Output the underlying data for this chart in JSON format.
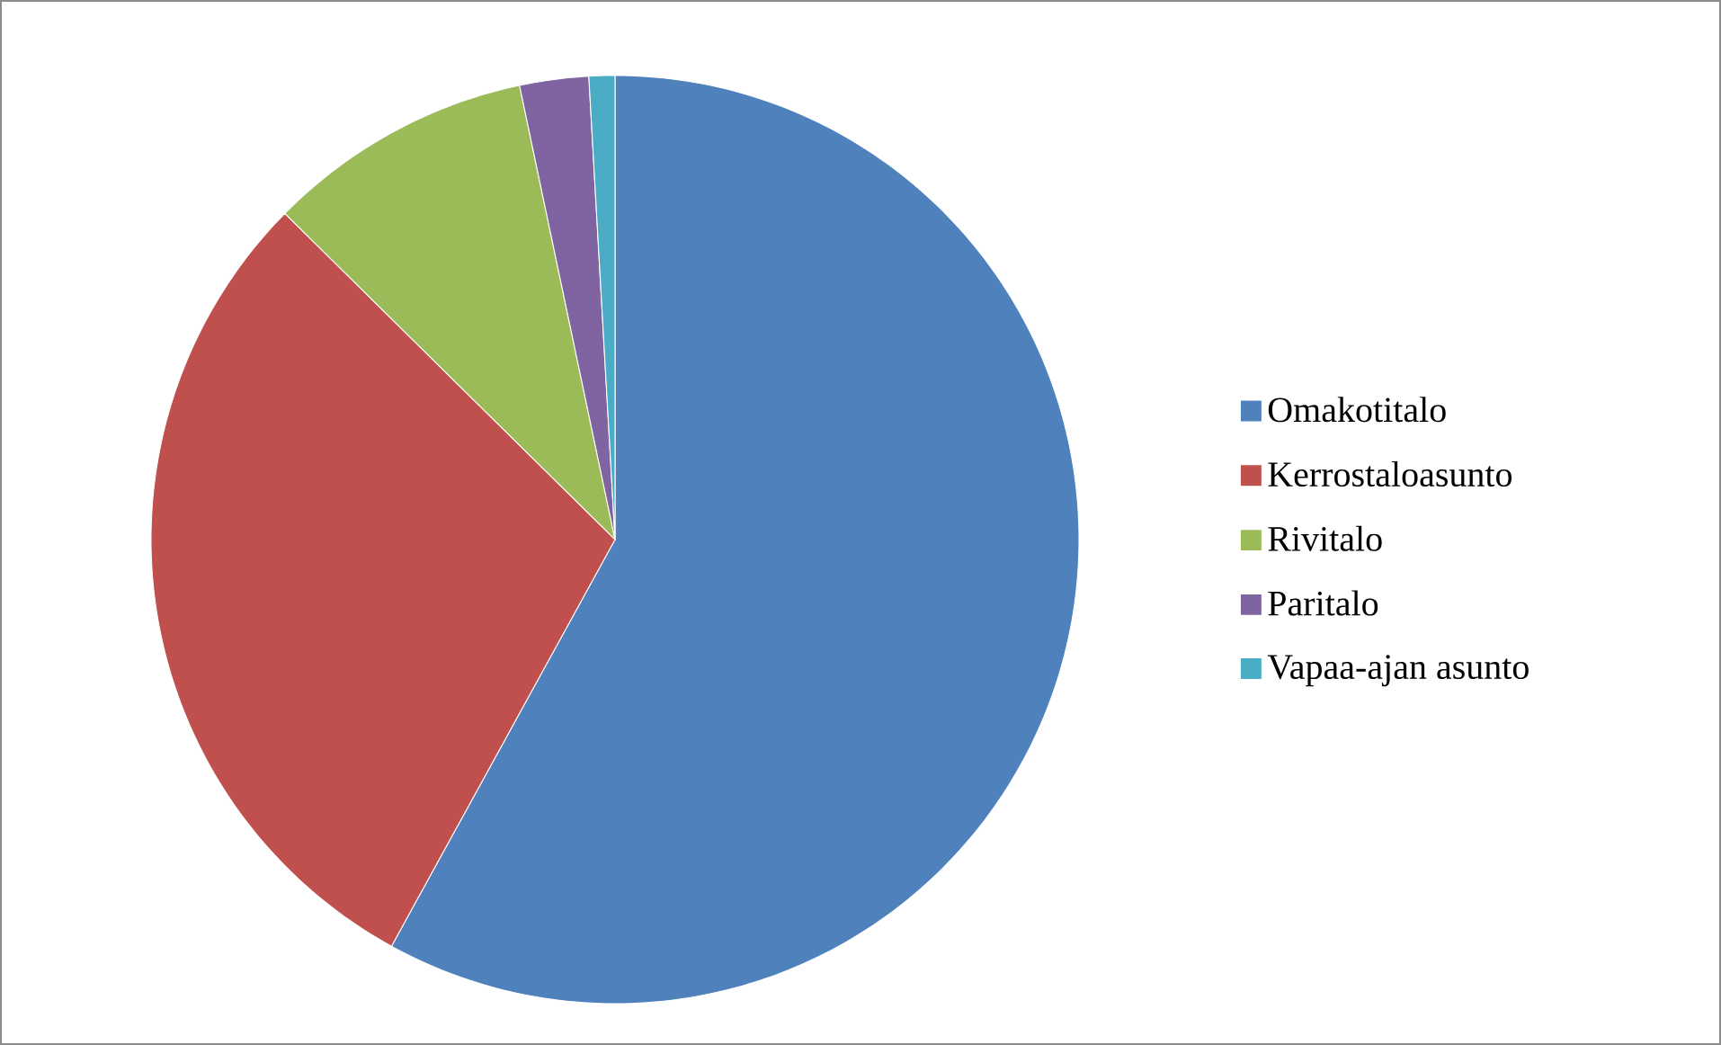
{
  "chart_data": {
    "type": "pie",
    "categories": [
      "Omakotitalo",
      "Kerrostaloasunto",
      "Rivitalo",
      "Paritalo",
      "Vapaa-ajan asunto"
    ],
    "values": [
      58.0,
      29.4,
      9.3,
      2.4,
      0.9
    ],
    "colors": [
      "#4f81bd",
      "#c0504d",
      "#9bbb59",
      "#8064a2",
      "#4bacc6"
    ],
    "legend": "right"
  }
}
